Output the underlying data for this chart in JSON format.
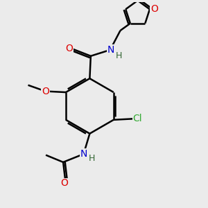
{
  "background_color": "#ebebeb",
  "atom_colors": {
    "C": "#000000",
    "N": "#0000cc",
    "O": "#dd0000",
    "Cl": "#33aa33",
    "H": "#336633"
  },
  "bond_color": "#000000",
  "bond_width": 1.8,
  "font_size_atoms": 10,
  "font_size_H": 9
}
